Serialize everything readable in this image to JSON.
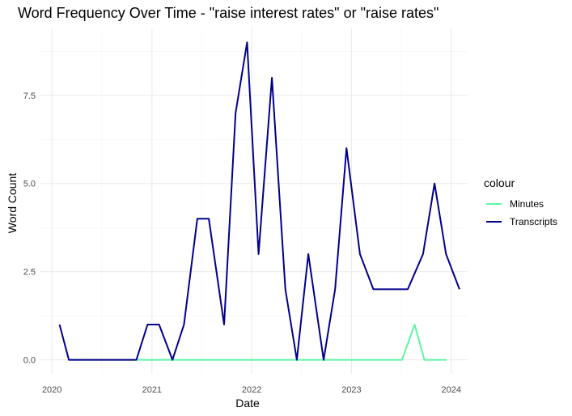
{
  "chart_data": {
    "type": "line",
    "title": "Word Frequency Over Time - \"raise interest rates\" or \"raise rates\"",
    "xlabel": "Date",
    "ylabel": "Word Count",
    "x_ticks": [
      "2020",
      "2021",
      "2022",
      "2023",
      "2024"
    ],
    "y_ticks": [
      "0.0",
      "2.5",
      "5.0",
      "7.5"
    ],
    "ylim": [
      -0.4,
      9.4
    ],
    "xlim": [
      "2019-11-20",
      "2024-03-01"
    ],
    "grid": true,
    "legend": {
      "title": "colour",
      "position": "right"
    },
    "series": [
      {
        "name": "Minutes",
        "color": "#5cf5a3",
        "points": [
          [
            "2020-03-01",
            0
          ],
          [
            "2020-06-01",
            0
          ],
          [
            "2020-09-01",
            0
          ],
          [
            "2020-12-01",
            0
          ],
          [
            "2021-03-01",
            0
          ],
          [
            "2021-06-01",
            0
          ],
          [
            "2021-09-01",
            0
          ],
          [
            "2021-12-01",
            0
          ],
          [
            "2022-03-01",
            0
          ],
          [
            "2022-06-01",
            0
          ],
          [
            "2022-09-01",
            0
          ],
          [
            "2022-12-01",
            0
          ],
          [
            "2023-03-01",
            0
          ],
          [
            "2023-07-05",
            0
          ],
          [
            "2023-08-20",
            1
          ],
          [
            "2023-09-25",
            0
          ],
          [
            "2023-12-15",
            0
          ]
        ]
      },
      {
        "name": "Transcripts",
        "color": "#00008b",
        "points": [
          [
            "2020-01-29",
            1
          ],
          [
            "2020-03-03",
            0
          ],
          [
            "2020-04-29",
            0
          ],
          [
            "2020-06-10",
            0
          ],
          [
            "2020-07-29",
            0
          ],
          [
            "2020-09-16",
            0
          ],
          [
            "2020-11-05",
            0
          ],
          [
            "2020-12-16",
            1
          ],
          [
            "2021-01-27",
            1
          ],
          [
            "2021-03-17",
            0
          ],
          [
            "2021-04-28",
            1
          ],
          [
            "2021-06-16",
            4
          ],
          [
            "2021-07-28",
            4
          ],
          [
            "2021-09-22",
            1
          ],
          [
            "2021-11-03",
            7
          ],
          [
            "2021-12-15",
            9
          ],
          [
            "2022-01-26",
            3
          ],
          [
            "2022-03-16",
            8
          ],
          [
            "2022-05-04",
            2
          ],
          [
            "2022-06-15",
            0
          ],
          [
            "2022-07-27",
            3
          ],
          [
            "2022-09-21",
            0
          ],
          [
            "2022-11-02",
            2
          ],
          [
            "2022-12-14",
            6
          ],
          [
            "2023-02-01",
            3
          ],
          [
            "2023-03-22",
            2
          ],
          [
            "2023-05-03",
            2
          ],
          [
            "2023-06-14",
            2
          ],
          [
            "2023-07-26",
            2
          ],
          [
            "2023-09-20",
            3
          ],
          [
            "2023-11-01",
            5
          ],
          [
            "2023-12-13",
            3
          ],
          [
            "2024-01-31",
            2
          ]
        ]
      }
    ]
  }
}
